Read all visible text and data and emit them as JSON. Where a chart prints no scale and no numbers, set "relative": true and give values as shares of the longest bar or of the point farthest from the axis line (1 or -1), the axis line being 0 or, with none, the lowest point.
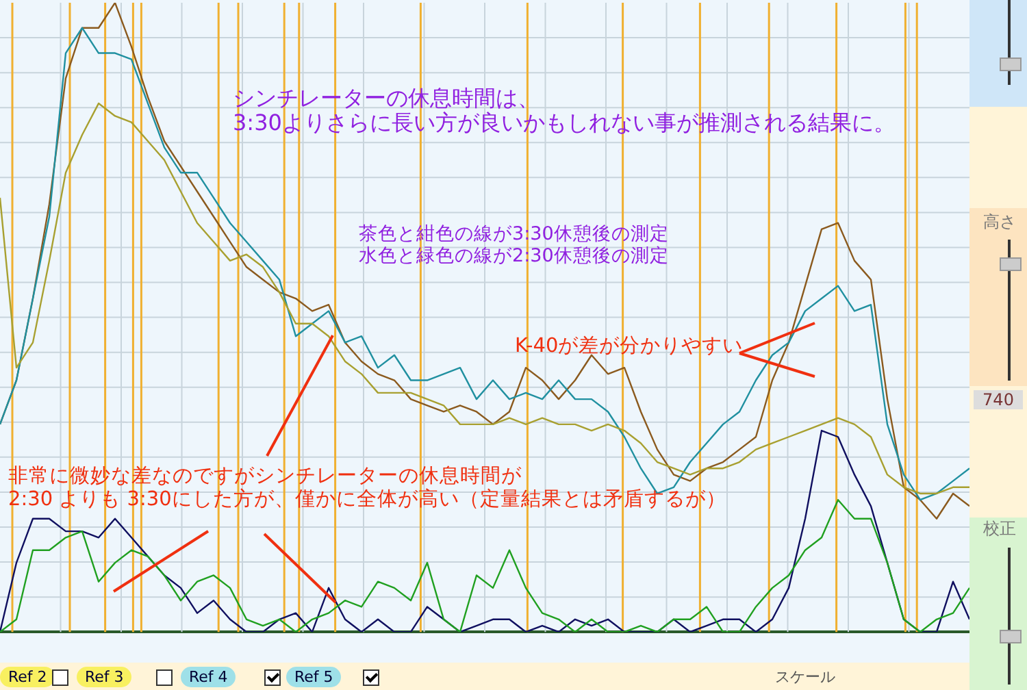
{
  "chart_data": {
    "type": "line",
    "relative": true,
    "grid": true,
    "legend": false,
    "marker": "none",
    "categories": [
      null,
      null,
      null,
      null,
      null,
      null,
      null,
      null,
      null,
      null,
      null,
      null,
      null,
      null,
      null,
      null,
      null,
      null,
      null,
      null,
      null,
      null,
      null,
      null,
      null,
      null,
      null,
      null,
      null,
      null,
      null,
      null,
      null,
      null,
      null,
      null,
      null,
      null,
      null,
      null,
      null,
      null,
      null,
      null,
      null,
      null,
      null,
      null,
      null,
      null,
      null,
      null,
      null,
      null,
      null,
      null,
      null,
      null,
      null,
      null
    ],
    "series": [
      {
        "color": "#a8a030",
        "values": [
          0.69,
          0.42,
          0.46,
          0.59,
          0.73,
          0.79,
          0.84,
          0.82,
          0.81,
          0.78,
          0.75,
          0.7,
          0.65,
          0.62,
          0.59,
          0.6,
          0.58,
          0.54,
          0.49,
          0.49,
          0.47,
          0.43,
          0.41,
          0.38,
          0.38,
          0.38,
          0.37,
          0.36,
          0.33,
          0.33,
          0.33,
          0.34,
          0.33,
          0.34,
          0.33,
          0.33,
          0.32,
          0.33,
          0.32,
          0.3,
          0.27,
          0.26,
          0.25,
          0.26,
          0.26,
          0.27,
          0.29,
          0.3,
          0.31,
          0.32,
          0.33,
          0.34,
          0.33,
          0.31,
          0.25,
          0.23,
          0.22,
          0.22,
          0.23,
          0.23
        ]
      },
      {
        "color": "#2090a0",
        "values": [
          0.33,
          0.4,
          0.53,
          0.66,
          0.92,
          0.96,
          0.92,
          0.92,
          0.91,
          0.84,
          0.77,
          0.73,
          0.73,
          0.69,
          0.65,
          0.62,
          0.59,
          0.56,
          0.47,
          0.49,
          0.51,
          0.46,
          0.47,
          0.42,
          0.44,
          0.4,
          0.4,
          0.41,
          0.42,
          0.37,
          0.4,
          0.37,
          0.38,
          0.37,
          0.4,
          0.37,
          0.37,
          0.35,
          0.31,
          0.26,
          0.22,
          0.23,
          0.27,
          0.3,
          0.33,
          0.35,
          0.4,
          0.44,
          0.46,
          0.51,
          0.53,
          0.55,
          0.51,
          0.52,
          0.33,
          0.25,
          0.21,
          0.22,
          0.24,
          0.26
        ]
      },
      {
        "color": "#8b5a1e",
        "values": [
          0.33,
          0.4,
          0.53,
          0.68,
          0.88,
          0.96,
          0.96,
          1,
          0.93,
          0.85,
          0.78,
          0.74,
          0.7,
          0.66,
          0.62,
          0.58,
          0.56,
          0.54,
          0.53,
          0.51,
          0.52,
          0.46,
          0.43,
          0.41,
          0.4,
          0.37,
          0.36,
          0.35,
          0.36,
          0.35,
          0.33,
          0.35,
          0.42,
          0.4,
          0.37,
          0.4,
          0.44,
          0.41,
          0.42,
          0.35,
          0.29,
          0.25,
          0.24,
          0.26,
          0.27,
          0.29,
          0.31,
          0.4,
          0.46,
          0.55,
          0.64,
          0.65,
          0.59,
          0.56,
          0.37,
          0.23,
          0.21,
          0.18,
          0.22,
          0.2
        ]
      },
      {
        "color": "#20a020",
        "values": [
          0,
          0.02,
          0.13,
          0.13,
          0.15,
          0.16,
          0.08,
          0.11,
          0.13,
          0.12,
          0.09,
          0.05,
          0.08,
          0.09,
          0.07,
          0.02,
          0.01,
          0.02,
          0,
          0.02,
          0.03,
          0.05,
          0.04,
          0.08,
          0.07,
          0.05,
          0.11,
          0.02,
          0,
          0.09,
          0.07,
          0.13,
          0.07,
          0.03,
          0.02,
          0,
          0.02,
          0,
          0,
          0.01,
          0,
          0.02,
          0.02,
          0.04,
          0,
          0,
          0.04,
          0.07,
          0.09,
          0.13,
          0.15,
          0.21,
          0.18,
          0.18,
          0.11,
          0.02,
          0,
          0.02,
          0.03,
          0.07
        ]
      },
      {
        "color": "#101060",
        "values": [
          0,
          0.11,
          0.18,
          0.18,
          0.16,
          0.16,
          0.15,
          0.18,
          0.15,
          0.12,
          0.09,
          0.07,
          0.03,
          0.05,
          0.02,
          0,
          0,
          0.02,
          0.03,
          0,
          0.07,
          0.02,
          0,
          0.02,
          0,
          0,
          0.04,
          0.02,
          0,
          0.01,
          0.02,
          0.02,
          0,
          0.01,
          0,
          0.02,
          0.01,
          0.02,
          0,
          0,
          0,
          0.02,
          0,
          0.01,
          0.02,
          0.02,
          0,
          0.02,
          0.07,
          0.18,
          0.32,
          0.31,
          0.25,
          0.2,
          0.11,
          0.02,
          0,
          0,
          0.08,
          0.02
        ]
      }
    ],
    "annotations": [
      "シンチレーターの休息時間は、",
      "3:30よりさらに長い方が良いかもしれない事が推測される結果に。",
      "茶色と紺色の線が3:30休憩後の測定",
      "水色と緑色の線が2:30休憩後の測定",
      "K-40が差が分かりやすい",
      "非常に微妙な差なのですがシンチレーターの休息時間が",
      "2:30 よりも 3:30にした方が、僅かに全体が高い（定量結果とは矛盾するが）",
      "高さ",
      "740",
      "校正",
      "スケール",
      "Ref 2",
      "Ref 3",
      "Ref 4",
      "Ref 5"
    ]
  }
}
